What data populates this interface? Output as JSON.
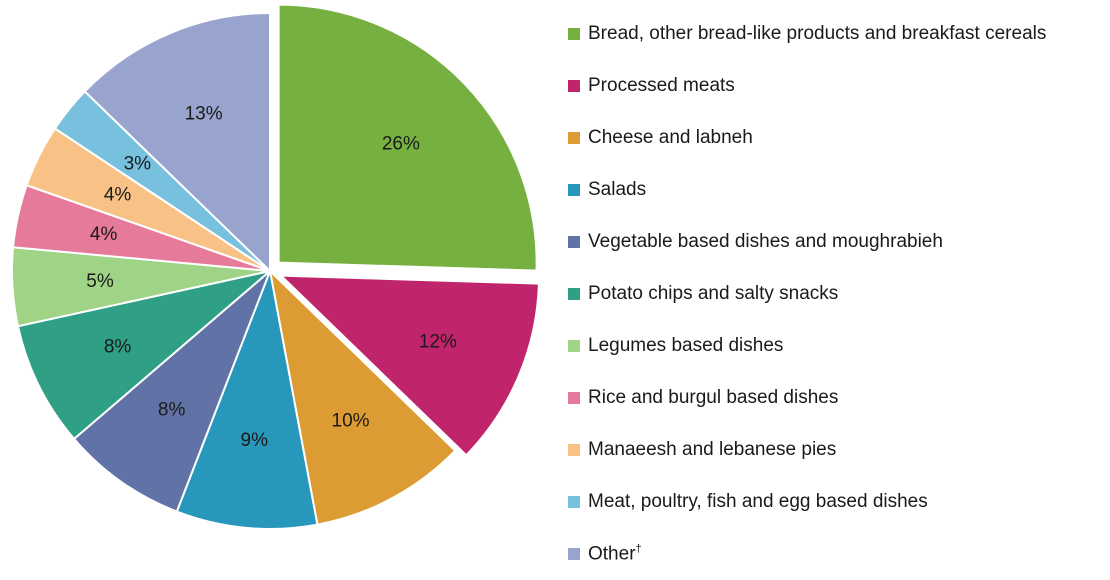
{
  "chart_data": {
    "type": "pie",
    "slices": [
      {
        "label": "Bread, other bread-like products and breakfast cereals",
        "value": 26,
        "display": "26%",
        "color": "#76b041"
      },
      {
        "label": "Processed meats",
        "value": 12,
        "display": "12%",
        "color": "#c0256b"
      },
      {
        "label": "Cheese and labneh",
        "value": 10,
        "display": "10%",
        "color": "#dc9c33"
      },
      {
        "label": "Salads",
        "value": 9,
        "display": "9%",
        "color": "#2797bb"
      },
      {
        "label": "Vegetable based dishes and moughrabieh",
        "value": 8,
        "display": "8%",
        "color": "#6172a6"
      },
      {
        "label": "Potato chips and salty snacks",
        "value": 8,
        "display": "8%",
        "color": "#2f9f86"
      },
      {
        "label": "Legumes based dishes",
        "value": 5,
        "display": "5%",
        "color": "#9fd386"
      },
      {
        "label": "Rice and burgul based dishes",
        "value": 4,
        "display": "4%",
        "color": "#e67a9a"
      },
      {
        "label": "Manaeesh and lebanese pies",
        "value": 4,
        "display": "4%",
        "color": "#f8c287"
      },
      {
        "label": "Meat, poultry, fish and egg based dishes",
        "value": 3,
        "display": "3%",
        "color": "#78c1de"
      },
      {
        "label": "Other",
        "label_superscript": "†",
        "value": 13,
        "display": "13%",
        "color": "#98a4cd"
      }
    ],
    "exploded": [
      "Bread, other bread-like products and breakfast cereals",
      "Processed meats"
    ],
    "start_angle_deg": 0,
    "direction": "clockwise",
    "legend_position": "right"
  }
}
